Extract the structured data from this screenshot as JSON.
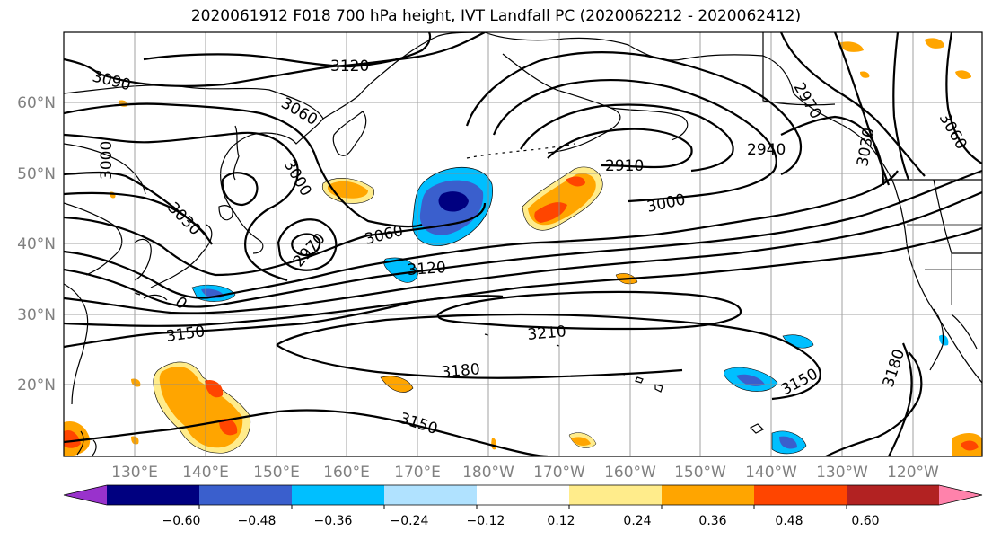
{
  "title": "2020061912 F018 700 hPa height, IVT Landfall PC (2020062212 - 2020062412)",
  "map": {
    "lat_labels": [
      "60°N",
      "50°N",
      "40°N",
      "30°N",
      "20°N"
    ],
    "lon_labels": [
      "130°E",
      "140°E",
      "150°E",
      "160°E",
      "170°E",
      "180°W",
      "170°W",
      "160°W",
      "150°W",
      "140°W",
      "130°W",
      "120°W"
    ],
    "contour_labels": [
      "3090",
      "3120",
      "3060",
      "3000",
      "3000",
      "3030",
      "2970",
      "3060",
      "3120",
      "3150",
      "3210",
      "3180",
      "3150",
      "2910",
      "2940",
      "3000",
      "2970",
      "3030",
      "3060",
      "3150",
      "3180",
      "0"
    ],
    "contour_color": "#000000",
    "coast_color": "#000000",
    "grid_color": "#8c8c8c",
    "height_units": "m"
  },
  "colorbar": {
    "ticks": [
      "−0.60",
      "−0.48",
      "−0.36",
      "−0.24",
      "−0.12",
      "0.12",
      "0.24",
      "0.36",
      "0.48",
      "0.60"
    ],
    "colors": [
      "#9932CC",
      "#000080",
      "#3A5FCD",
      "#00BFFF",
      "#B0E2FF",
      "#FFFFFF",
      "#FFEC8B",
      "#FFA500",
      "#FF4500",
      "#B22222",
      "#FF82AB"
    ]
  }
}
